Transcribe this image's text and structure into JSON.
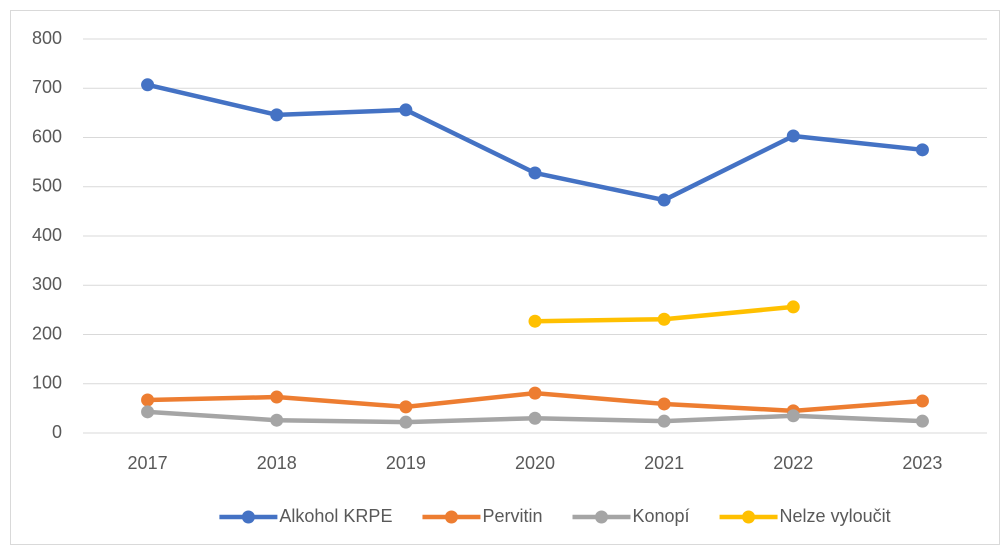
{
  "chart_data": {
    "type": "line",
    "categories": [
      "2017",
      "2018",
      "2019",
      "2020",
      "2021",
      "2022",
      "2023"
    ],
    "series": [
      {
        "name": "Alkohol KRPE",
        "color": "#4472c4",
        "values": [
          707,
          646,
          656,
          528,
          473,
          603,
          575
        ]
      },
      {
        "name": "Pervitin",
        "color": "#ed7d31",
        "values": [
          67,
          73,
          53,
          81,
          59,
          45,
          65
        ]
      },
      {
        "name": "Konopí",
        "color": "#a5a5a5",
        "values": [
          43,
          26,
          22,
          30,
          24,
          35,
          24
        ]
      },
      {
        "name": "Nelze vyloučit",
        "color": "#ffc000",
        "values": [
          null,
          null,
          null,
          227,
          231,
          256,
          null
        ]
      }
    ],
    "ylim": [
      0,
      800
    ],
    "yticks": [
      0,
      100,
      200,
      300,
      400,
      500,
      600,
      700,
      800
    ],
    "grid": true,
    "legend": "bottom"
  }
}
